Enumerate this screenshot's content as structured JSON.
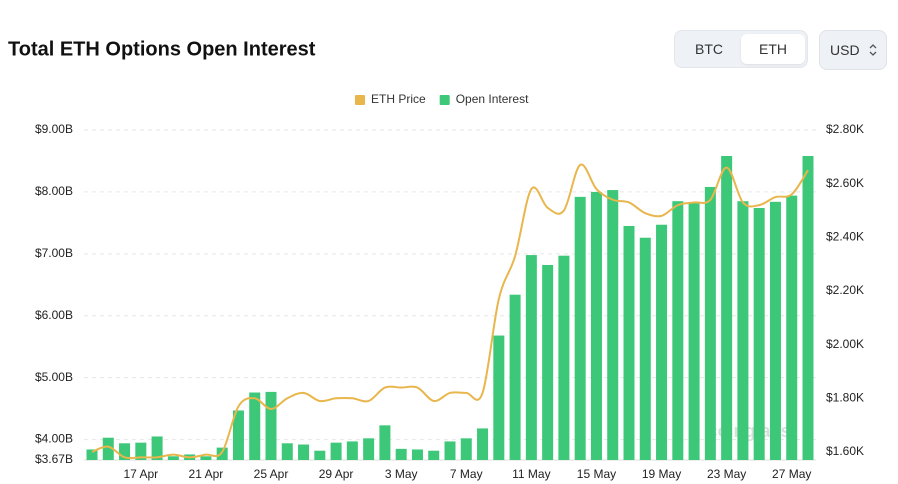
{
  "chart_data": {
    "type": "bar-line",
    "title": "Total ETH Options Open Interest",
    "toggle": [
      "BTC",
      "ETH"
    ],
    "currency": "USD",
    "watermark": "coinglass",
    "categories": [
      null,
      null,
      null,
      "17 Apr",
      null,
      null,
      null,
      "21 Apr",
      null,
      null,
      null,
      "25 Apr",
      null,
      null,
      null,
      "29 Apr",
      null,
      null,
      null,
      "3 May",
      null,
      null,
      null,
      "7 May",
      null,
      null,
      null,
      "11 May",
      null,
      null,
      null,
      "15 May",
      null,
      null,
      null,
      "19 May",
      null,
      null,
      null,
      "23 May",
      null,
      null,
      null,
      "27 May",
      null
    ],
    "series": [
      {
        "name": "ETH Price",
        "color": "#e8b64c",
        "axis": "y2",
        "values": [
          1.6,
          1.62,
          1.58,
          1.58,
          1.58,
          1.59,
          1.58,
          1.59,
          1.6,
          1.77,
          1.8,
          1.76,
          1.8,
          1.82,
          1.79,
          1.8,
          1.8,
          1.79,
          1.84,
          1.84,
          1.84,
          1.79,
          1.82,
          1.82,
          1.82,
          2.17,
          2.33,
          2.58,
          2.51,
          2.5,
          2.67,
          2.58,
          2.54,
          2.53,
          2.49,
          2.48,
          2.52,
          2.53,
          2.54,
          2.66,
          2.53,
          2.52,
          2.55,
          2.56,
          2.65
        ]
      },
      {
        "name": "Open Interest",
        "color": "#3cc878",
        "values": [
          3.84,
          4.03,
          3.94,
          3.95,
          4.05,
          3.73,
          3.76,
          3.73,
          3.87,
          4.47,
          4.76,
          4.77,
          3.94,
          3.92,
          3.82,
          3.95,
          3.97,
          4.02,
          4.23,
          3.85,
          3.84,
          3.82,
          3.97,
          4.02,
          4.18,
          5.68,
          6.34,
          6.98,
          6.82,
          6.97,
          7.92,
          8.0,
          8.03,
          7.45,
          7.26,
          7.47,
          7.85,
          7.82,
          8.08,
          8.58,
          7.85,
          7.74,
          7.84,
          7.94,
          8.58
        ]
      }
    ],
    "ylim": [
      3.67,
      9.0
    ],
    "yticks": [
      {
        "value": 3.67,
        "label": "$3.67B"
      },
      {
        "value": 4,
        "label": "$4.00B"
      },
      {
        "value": 5,
        "label": "$5.00B"
      },
      {
        "value": 6,
        "label": "$6.00B"
      },
      {
        "value": 7,
        "label": "$7.00B"
      },
      {
        "value": 8,
        "label": "$8.00B"
      },
      {
        "value": 9,
        "label": "$9.00B"
      }
    ],
    "y2lim": [
      1.57,
      2.8
    ],
    "y2ticks": [
      {
        "value": 1.6,
        "label": "$1.60K"
      },
      {
        "value": 1.8,
        "label": "$1.80K"
      },
      {
        "value": 2.0,
        "label": "$2.00K"
      },
      {
        "value": 2.2,
        "label": "$2.20K"
      },
      {
        "value": 2.4,
        "label": "$2.40K"
      },
      {
        "value": 2.6,
        "label": "$2.60K"
      },
      {
        "value": 2.8,
        "label": "$2.80K"
      }
    ],
    "grid": true,
    "legend": "top"
  }
}
